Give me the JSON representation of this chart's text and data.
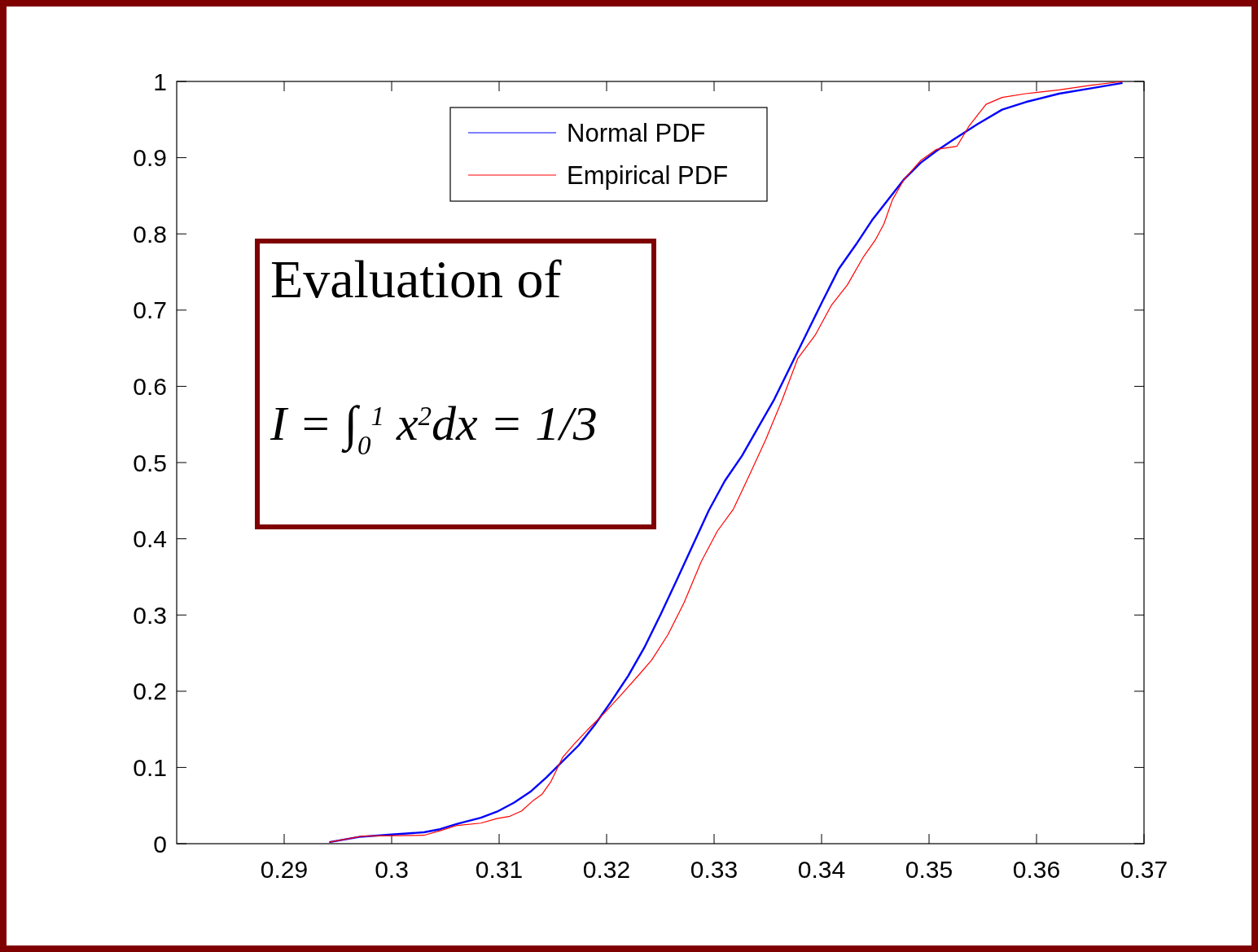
{
  "chart_data": {
    "type": "line",
    "xlim": [
      0.28,
      0.37
    ],
    "ylim": [
      0,
      1
    ],
    "xticks": [
      0.29,
      0.3,
      0.31,
      0.32,
      0.33,
      0.34,
      0.35,
      0.36,
      0.37
    ],
    "yticks": [
      0,
      0.1,
      0.2,
      0.3,
      0.4,
      0.5,
      0.6,
      0.7,
      0.8,
      0.9,
      1
    ],
    "grid": false,
    "legend": "top",
    "marker": "none",
    "line_style": "solid",
    "annotations": [
      "Evaluation of",
      "I = ∫$_{0}$$^{1}$ x$^{2}$dx = 1/3"
    ],
    "series": [
      {
        "name": "Normal PDF",
        "color": "#0000ff",
        "x": [
          0.2942,
          0.297,
          0.3,
          0.303,
          0.3045,
          0.3061,
          0.3083,
          0.3098,
          0.3114,
          0.3129,
          0.3144,
          0.3159,
          0.3174,
          0.3189,
          0.3204,
          0.322,
          0.3235,
          0.325,
          0.3265,
          0.328,
          0.3295,
          0.331,
          0.3326,
          0.3341,
          0.3356,
          0.3371,
          0.3386,
          0.3401,
          0.3416,
          0.3432,
          0.3447,
          0.3462,
          0.3477,
          0.3492,
          0.3507,
          0.3522,
          0.3545,
          0.3568,
          0.359,
          0.3621,
          0.3651,
          0.368
        ],
        "values": [
          0.002,
          0.009,
          0.012,
          0.015,
          0.019,
          0.026,
          0.034,
          0.042,
          0.054,
          0.068,
          0.087,
          0.108,
          0.129,
          0.156,
          0.186,
          0.22,
          0.257,
          0.3,
          0.345,
          0.391,
          0.437,
          0.476,
          0.509,
          0.546,
          0.583,
          0.626,
          0.669,
          0.712,
          0.754,
          0.786,
          0.818,
          0.845,
          0.872,
          0.893,
          0.909,
          0.923,
          0.944,
          0.963,
          0.973,
          0.984,
          0.991,
          0.998
        ]
      },
      {
        "name": "Empirical PDF",
        "color": "#ff0000",
        "x": [
          0.2942,
          0.2973,
          0.303,
          0.3045,
          0.3061,
          0.3083,
          0.3098,
          0.311,
          0.3121,
          0.3132,
          0.314,
          0.3148,
          0.3159,
          0.317,
          0.3182,
          0.3197,
          0.3212,
          0.3231,
          0.3242,
          0.3257,
          0.3272,
          0.3288,
          0.3303,
          0.3318,
          0.3333,
          0.3348,
          0.3363,
          0.3378,
          0.3394,
          0.3409,
          0.3424,
          0.3439,
          0.345,
          0.3458,
          0.3466,
          0.3477,
          0.3492,
          0.3507,
          0.3526,
          0.3537,
          0.3553,
          0.3568,
          0.359,
          0.3621,
          0.3651,
          0.368
        ],
        "values": [
          0.002,
          0.01,
          0.011,
          0.017,
          0.024,
          0.027,
          0.033,
          0.036,
          0.043,
          0.057,
          0.065,
          0.081,
          0.113,
          0.131,
          0.149,
          0.17,
          0.193,
          0.223,
          0.241,
          0.274,
          0.316,
          0.37,
          0.41,
          0.439,
          0.484,
          0.53,
          0.581,
          0.637,
          0.667,
          0.706,
          0.733,
          0.77,
          0.792,
          0.813,
          0.845,
          0.872,
          0.896,
          0.911,
          0.915,
          0.941,
          0.97,
          0.979,
          0.984,
          0.989,
          0.995,
          1.0
        ]
      }
    ]
  }
}
